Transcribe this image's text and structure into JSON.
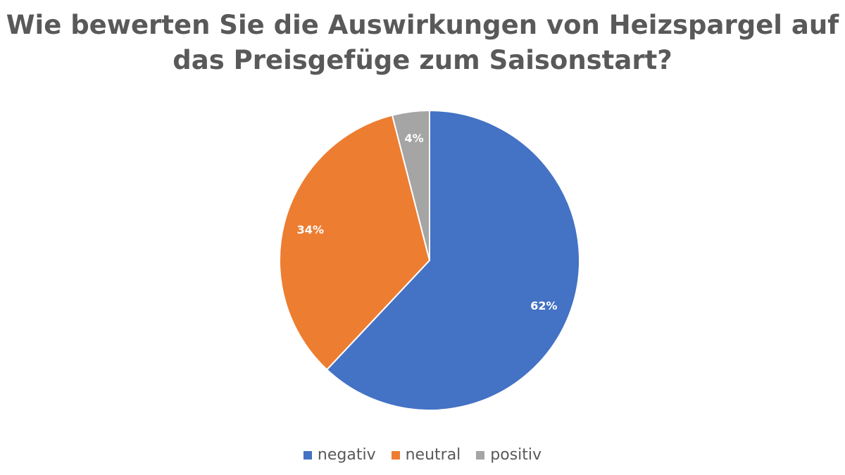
{
  "chart_data": {
    "type": "pie",
    "title_lines": [
      "Wie bewerten Sie die Auswirkungen von Heizspargel auf",
      "das Preisgefüge zum Saisonstart?"
    ],
    "categories": [
      "negativ",
      "neutral",
      "positiv"
    ],
    "values": [
      62,
      34,
      4
    ],
    "data_labels": [
      "62%",
      "34%",
      "4%"
    ],
    "colors": [
      "#4472C4",
      "#ED7D31",
      "#A5A5A5"
    ],
    "start_angle_deg": 0,
    "direction": "clockwise",
    "legend_position": "bottom"
  }
}
